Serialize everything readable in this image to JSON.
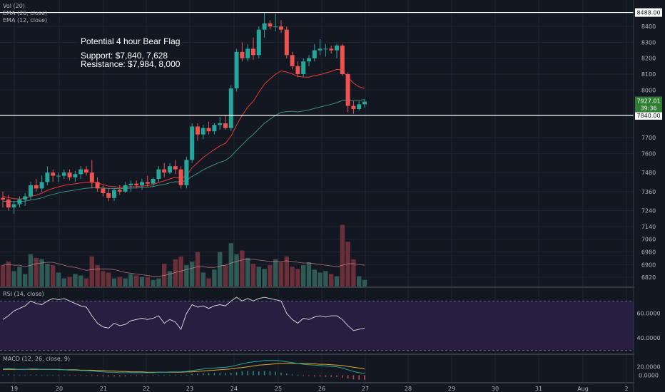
{
  "indicators": {
    "vol": "Vol (20)",
    "ema26": "EMA (26, close)",
    "ema12": "EMA (12, close)",
    "rsi": "RSI (14, close)",
    "macd": "MACD (12, 26, close, 9)"
  },
  "annotation": {
    "title": "Potential 4 hour Bear Flag",
    "support": "Support: $7,840, 7,628",
    "resistance": "Resistance: $7,984, 8,000"
  },
  "colors": {
    "background": "#131722",
    "up": "#26a69a",
    "down": "#ef5350",
    "ema12": "#e53935",
    "ema26": "#3b8f7e",
    "rsi": "#e0e0e0",
    "rsi_band": "#2a1f45",
    "macd": "#26a69a",
    "signal": "#e0a830",
    "grid": "#1f2433"
  },
  "chart_data": {
    "type": "candlestick",
    "price_axis": {
      "ylim": [
        6780,
        8540
      ],
      "ticks": [
        6820,
        6900,
        6980,
        7060,
        7140,
        7240,
        7360,
        7480,
        7600,
        7700,
        7840,
        8000,
        8100,
        8200,
        8300,
        8400,
        8488
      ]
    },
    "x_axis": {
      "ticks": [
        "19",
        "20",
        "21",
        "22",
        "23",
        "24",
        "25",
        "26",
        "27",
        "28",
        "29",
        "30",
        "31",
        "Aug",
        "2"
      ]
    },
    "horizontal_lines": [
      {
        "value": 8488,
        "label": "8488.00"
      },
      {
        "value": 7840,
        "label": "7840.00"
      }
    ],
    "last_price": {
      "value": 7927.01,
      "label": "7927.01",
      "countdown": "39:36"
    },
    "candles": [
      [
        7320,
        7360,
        7260,
        7310
      ],
      [
        7310,
        7340,
        7240,
        7260
      ],
      [
        7260,
        7300,
        7220,
        7280
      ],
      [
        7280,
        7330,
        7260,
        7310
      ],
      [
        7310,
        7350,
        7270,
        7330
      ],
      [
        7330,
        7420,
        7310,
        7400
      ],
      [
        7400,
        7440,
        7360,
        7380
      ],
      [
        7380,
        7460,
        7360,
        7420
      ],
      [
        7420,
        7520,
        7400,
        7480
      ],
      [
        7480,
        7500,
        7420,
        7460
      ],
      [
        7460,
        7480,
        7420,
        7460
      ],
      [
        7460,
        7500,
        7440,
        7480
      ],
      [
        7480,
        7500,
        7430,
        7450
      ],
      [
        7450,
        7490,
        7420,
        7470
      ],
      [
        7470,
        7520,
        7440,
        7500
      ],
      [
        7500,
        7520,
        7460,
        7480
      ],
      [
        7480,
        7560,
        7380,
        7420
      ],
      [
        7420,
        7450,
        7360,
        7380
      ],
      [
        7380,
        7400,
        7330,
        7350
      ],
      [
        7350,
        7380,
        7300,
        7320
      ],
      [
        7320,
        7380,
        7300,
        7370
      ],
      [
        7370,
        7400,
        7340,
        7360
      ],
      [
        7360,
        7420,
        7350,
        7400
      ],
      [
        7400,
        7430,
        7360,
        7410
      ],
      [
        7410,
        7430,
        7380,
        7400
      ],
      [
        7400,
        7440,
        7370,
        7420
      ],
      [
        7420,
        7460,
        7390,
        7410
      ],
      [
        7410,
        7450,
        7390,
        7440
      ],
      [
        7440,
        7520,
        7420,
        7500
      ],
      [
        7500,
        7540,
        7450,
        7480
      ],
      [
        7480,
        7540,
        7470,
        7520
      ],
      [
        7520,
        7560,
        7470,
        7500
      ],
      [
        7500,
        7520,
        7380,
        7400
      ],
      [
        7400,
        7580,
        7380,
        7560
      ],
      [
        7560,
        7790,
        7540,
        7770
      ],
      [
        7770,
        7790,
        7680,
        7720
      ],
      [
        7720,
        7780,
        7690,
        7760
      ],
      [
        7760,
        7800,
        7720,
        7740
      ],
      [
        7740,
        7790,
        7720,
        7780
      ],
      [
        7780,
        7830,
        7750,
        7790
      ],
      [
        7790,
        7840,
        7750,
        7760
      ],
      [
        7760,
        8030,
        7740,
        8010
      ],
      [
        8010,
        8260,
        7990,
        8240
      ],
      [
        8240,
        8300,
        8180,
        8200
      ],
      [
        8200,
        8290,
        8180,
        8260
      ],
      [
        8260,
        8330,
        8190,
        8220
      ],
      [
        8220,
        8400,
        8200,
        8380
      ],
      [
        8380,
        8490,
        8330,
        8420
      ],
      [
        8420,
        8440,
        8380,
        8400
      ],
      [
        8400,
        8480,
        8370,
        8400
      ],
      [
        8400,
        8440,
        8360,
        8380
      ],
      [
        8380,
        8400,
        8200,
        8220
      ],
      [
        8220,
        8240,
        8130,
        8150
      ],
      [
        8150,
        8180,
        8080,
        8100
      ],
      [
        8100,
        8200,
        8080,
        8180
      ],
      [
        8180,
        8220,
        8150,
        8200
      ],
      [
        8200,
        8290,
        8180,
        8250
      ],
      [
        8250,
        8320,
        8220,
        8260
      ],
      [
        8260,
        8290,
        8210,
        8260
      ],
      [
        8260,
        8280,
        8230,
        8250
      ],
      [
        8250,
        8290,
        8200,
        8280
      ],
      [
        8280,
        8290,
        8090,
        8100
      ],
      [
        8100,
        8110,
        7860,
        7900
      ],
      [
        7900,
        7930,
        7850,
        7880
      ],
      [
        7880,
        7930,
        7870,
        7910
      ],
      [
        7910,
        7940,
        7890,
        7927
      ]
    ],
    "ema12": [
      7330,
      7322,
      7315,
      7313,
      7316,
      7330,
      7337,
      7350,
      7368,
      7380,
      7390,
      7399,
      7405,
      7409,
      7415,
      7419,
      7419,
      7413,
      7405,
      7394,
      7392,
      7387,
      7389,
      7391,
      7392,
      7395,
      7398,
      7404,
      7418,
      7427,
      7440,
      7450,
      7443,
      7460,
      7510,
      7542,
      7575,
      7600,
      7625,
      7648,
      7664,
      7710,
      7780,
      7840,
      7892,
      7930,
      7985,
      8037,
      8070,
      8100,
      8120,
      8113,
      8102,
      8085,
      8082,
      8081,
      8091,
      8097,
      8107,
      8117,
      8130,
      8125,
      8080,
      8044,
      8020,
      8010
    ],
    "ema26": [
      7300,
      7298,
      7297,
      7298,
      7300,
      7307,
      7312,
      7320,
      7333,
      7342,
      7351,
      7359,
      7365,
      7370,
      7376,
      7381,
      7384,
      7384,
      7383,
      7380,
      7380,
      7378,
      7380,
      7382,
      7383,
      7385,
      7388,
      7392,
      7400,
      7406,
      7415,
      7422,
      7420,
      7430,
      7456,
      7475,
      7497,
      7514,
      7530,
      7545,
      7556,
      7582,
      7620,
      7654,
      7690,
      7720,
      7756,
      7790,
      7816,
      7840,
      7860,
      7864,
      7866,
      7862,
      7868,
      7874,
      7884,
      7893,
      7901,
      7910,
      7920,
      7934,
      7935,
      7935,
      7935,
      7940
    ],
    "volume": {
      "ylim": [
        0,
        100
      ],
      "values": [
        30,
        35,
        22,
        28,
        18,
        45,
        40,
        38,
        32,
        30,
        20,
        12,
        14,
        18,
        16,
        12,
        42,
        30,
        22,
        20,
        12,
        14,
        12,
        18,
        16,
        14,
        14,
        10,
        12,
        32,
        22,
        38,
        42,
        30,
        35,
        48,
        20,
        12,
        24,
        48,
        30,
        60,
        45,
        50,
        40,
        32,
        28,
        25,
        30,
        38,
        34,
        42,
        28,
        25,
        30,
        34,
        24,
        20,
        22,
        18,
        15,
        85,
        62,
        38,
        15,
        10
      ],
      "ma": [
        30,
        31,
        30,
        30,
        28,
        30,
        32,
        33,
        34,
        34,
        32,
        30,
        28,
        27,
        25,
        23,
        24,
        25,
        25,
        25,
        24,
        22,
        20,
        19,
        18,
        17,
        16,
        15,
        15,
        16,
        18,
        20,
        22,
        24,
        26,
        28,
        28,
        27,
        27,
        29,
        30,
        33,
        35,
        37,
        38,
        38,
        37,
        36,
        35,
        35,
        35,
        36,
        35,
        34,
        33,
        33,
        32,
        31,
        30,
        29,
        28,
        30,
        32,
        32,
        31,
        30
      ]
    },
    "rsi": {
      "ylim": [
        28,
        80
      ],
      "ticks": [
        "60.0000",
        "40.0000"
      ],
      "tick_values": [
        60,
        40
      ],
      "band": [
        70,
        30
      ],
      "values": [
        55,
        58,
        62,
        64,
        66,
        70,
        68,
        67,
        70,
        72,
        71,
        72,
        70,
        68,
        66,
        65,
        58,
        52,
        49,
        48,
        52,
        50,
        51,
        54,
        55,
        56,
        55,
        56,
        58,
        52,
        55,
        53,
        47,
        60,
        67,
        65,
        66,
        64,
        66,
        67,
        66,
        70,
        73,
        70,
        72,
        70,
        72,
        73,
        72,
        71,
        70,
        60,
        55,
        52,
        56,
        55,
        57,
        58,
        57,
        58,
        58,
        55,
        50,
        46,
        47,
        48
      ]
    },
    "macd": {
      "ylim": [
        -18,
        50
      ],
      "ticks": [
        "20.0000",
        "0.0000"
      ],
      "tick_values": [
        20,
        0
      ],
      "macd": [
        15,
        16,
        15,
        14,
        14,
        15,
        15,
        14,
        14,
        14,
        13,
        13,
        12,
        12,
        11,
        11,
        10,
        9,
        8,
        7,
        7,
        6,
        6,
        6,
        6,
        6,
        6,
        6,
        7,
        7,
        8,
        8,
        8,
        9,
        11,
        13,
        15,
        16,
        17,
        18,
        19,
        21,
        24,
        27,
        30,
        32,
        33,
        35,
        35,
        35,
        34,
        32,
        30,
        28,
        26,
        25,
        24,
        23,
        22,
        21,
        20,
        17,
        13,
        9,
        6,
        4
      ],
      "signal": [
        14,
        14,
        14,
        14,
        14,
        14,
        14,
        14,
        14,
        14,
        14,
        13,
        13,
        13,
        12,
        12,
        12,
        11,
        11,
        10,
        10,
        9,
        9,
        8,
        8,
        8,
        7,
        7,
        7,
        7,
        7,
        7,
        7,
        8,
        8,
        9,
        10,
        11,
        12,
        13,
        14,
        15,
        17,
        18,
        20,
        22,
        24,
        25,
        26,
        27,
        28,
        28,
        28,
        28,
        28,
        27,
        27,
        26,
        26,
        25,
        24,
        23,
        21,
        19,
        17,
        15
      ],
      "hist": [
        1,
        2,
        1,
        0,
        0,
        1,
        1,
        0,
        0,
        0,
        -1,
        0,
        -1,
        -1,
        -1,
        -1,
        -2,
        -2,
        -3,
        -3,
        -3,
        -3,
        -3,
        -2,
        -2,
        -2,
        -1,
        -1,
        0,
        0,
        1,
        1,
        1,
        1,
        3,
        4,
        5,
        5,
        5,
        5,
        5,
        6,
        7,
        9,
        10,
        10,
        9,
        10,
        9,
        8,
        6,
        4,
        2,
        0,
        -2,
        -2,
        -3,
        -3,
        -4,
        -4,
        -4,
        -6,
        -8,
        -10,
        -11,
        -11
      ]
    }
  }
}
